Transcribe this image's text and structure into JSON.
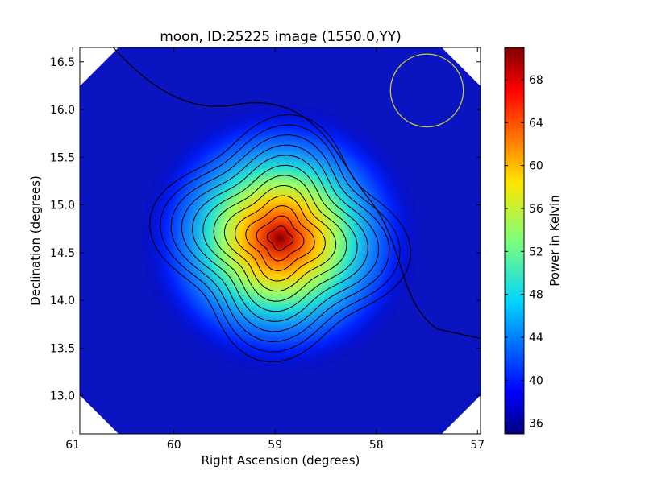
{
  "chart_data": {
    "type": "heatmap",
    "title": "moon, ID:25225 image (1550.0,YY)",
    "xlabel": "Right Ascension (degrees)",
    "ylabel": "Declination (degrees)",
    "xlim": [
      60.93,
      56.97
    ],
    "ylim": [
      12.6,
      16.65
    ],
    "x_ticks": [
      61,
      60,
      59,
      58,
      57
    ],
    "y_ticks": [
      13.0,
      13.5,
      14.0,
      14.5,
      15.0,
      15.5,
      16.0,
      16.5
    ],
    "x_tick_labels": [
      "61",
      "60",
      "59",
      "58",
      "57"
    ],
    "y_tick_labels": [
      "13.0",
      "13.5",
      "14.0",
      "14.5",
      "15.0",
      "15.5",
      "16.0",
      "16.5"
    ],
    "source_peak": {
      "ra": 58.95,
      "dec": 14.65,
      "value": 71
    },
    "background_value": 35.5,
    "beam_circle": {
      "ra": 57.5,
      "dec": 16.2,
      "radius_deg": 0.36,
      "color": "#c8c832"
    },
    "contour_color": "#000000",
    "colorbar": {
      "label": "Power in Kelvin",
      "min": 35,
      "max": 71,
      "ticks": [
        36,
        40,
        44,
        48,
        52,
        56,
        60,
        64,
        68
      ],
      "tick_labels": [
        "36",
        "40",
        "44",
        "48",
        "52",
        "56",
        "60",
        "64",
        "68"
      ],
      "colormap": "jet"
    }
  }
}
